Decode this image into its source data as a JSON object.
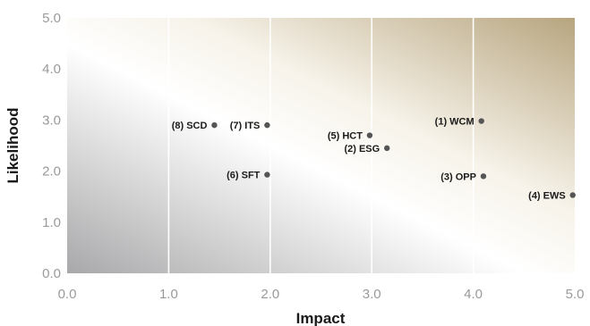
{
  "chart_data": {
    "type": "scatter",
    "xlabel": "Impact",
    "ylabel": "Likelihood",
    "xlim": [
      0,
      5
    ],
    "ylim": [
      0,
      5
    ],
    "x_ticks": [
      "0.0",
      "1.0",
      "2.0",
      "3.0",
      "4.0",
      "5.0"
    ],
    "y_ticks": [
      "0.0",
      "1.0",
      "2.0",
      "3.0",
      "4.0",
      "5.0"
    ],
    "grid": "vertical",
    "background_gradient": {
      "from": "#a9a9ab",
      "mid": "#ffffff",
      "to": "#b8a680"
    },
    "points": [
      {
        "label": "(1) WCM",
        "x": 4.08,
        "y": 2.98
      },
      {
        "label": "(2) ESG",
        "x": 3.15,
        "y": 2.45
      },
      {
        "label": "(3) OPP",
        "x": 4.1,
        "y": 1.9
      },
      {
        "label": "(4) EWS",
        "x": 4.98,
        "y": 1.53
      },
      {
        "label": "(5) HCT",
        "x": 2.98,
        "y": 2.7
      },
      {
        "label": "(6) SFT",
        "x": 1.97,
        "y": 1.93
      },
      {
        "label": "(7) ITS",
        "x": 1.97,
        "y": 2.9
      },
      {
        "label": "(8) SCD",
        "x": 1.45,
        "y": 2.9
      }
    ]
  }
}
